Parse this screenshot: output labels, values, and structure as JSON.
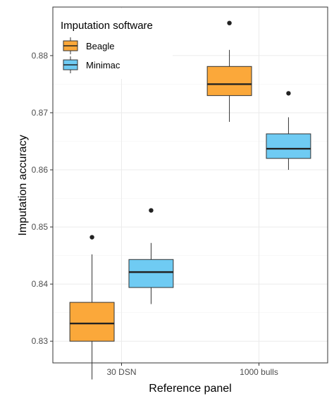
{
  "chart_data": {
    "type": "box",
    "xlabel": "Reference panel",
    "ylabel": "Imputation accuracy",
    "categories": [
      "30 DSN",
      "1000 bulls"
    ],
    "ylim": [
      0.8262,
      0.8885
    ],
    "yticks": [
      0.83,
      0.84,
      0.85,
      0.86,
      0.87,
      0.88
    ],
    "ytick_labels": [
      "0.83",
      "0.84",
      "0.85",
      "0.86",
      "0.87",
      "0.88"
    ],
    "grid": true,
    "legend": {
      "title": "Imputation software",
      "position": "top-left",
      "entries": [
        "Beagle",
        "Minimac"
      ]
    },
    "series": [
      {
        "name": "Beagle",
        "color": "#FBA83A",
        "boxes": [
          {
            "category": "30 DSN",
            "whisker_low": 0.8233,
            "q1": 0.83,
            "median": 0.8331,
            "q3": 0.8368,
            "whisker_high": 0.8452,
            "outliers": [
              0.8482
            ]
          },
          {
            "category": "1000 bulls",
            "whisker_low": 0.8684,
            "q1": 0.873,
            "median": 0.875,
            "q3": 0.8781,
            "whisker_high": 0.881,
            "outliers": [
              0.8857
            ]
          }
        ]
      },
      {
        "name": "Minimac",
        "color": "#6FCBF3",
        "boxes": [
          {
            "category": "30 DSN",
            "whisker_low": 0.8365,
            "q1": 0.8394,
            "median": 0.8421,
            "q3": 0.8443,
            "whisker_high": 0.8472,
            "outliers": [
              0.8529
            ]
          },
          {
            "category": "1000 bulls",
            "whisker_low": 0.86,
            "q1": 0.862,
            "median": 0.8637,
            "q3": 0.8663,
            "whisker_high": 0.8692,
            "outliers": [
              0.8734
            ]
          }
        ]
      }
    ]
  }
}
